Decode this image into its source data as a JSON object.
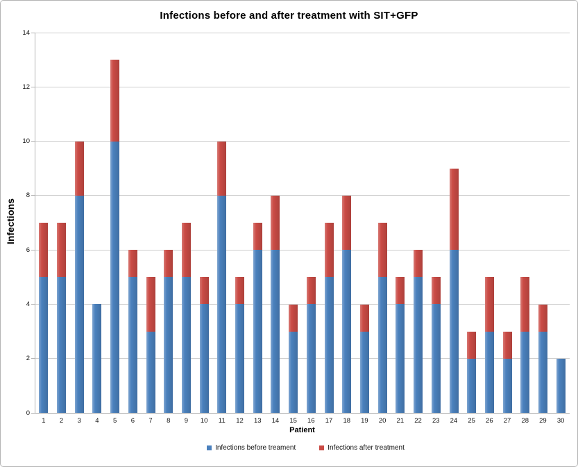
{
  "chart_data": {
    "type": "bar",
    "stacked": true,
    "title": "Infections before and after treatment with SIT+GFP",
    "xlabel": "Patient",
    "ylabel": "Infections",
    "categories": [
      "1",
      "2",
      "3",
      "4",
      "5",
      "6",
      "7",
      "8",
      "9",
      "10",
      "11",
      "12",
      "13",
      "14",
      "15",
      "16",
      "17",
      "18",
      "19",
      "20",
      "21",
      "22",
      "23",
      "24",
      "25",
      "26",
      "27",
      "28",
      "29",
      "30"
    ],
    "series": [
      {
        "name": "Infections before treament",
        "color": "#4a80bd",
        "values": [
          5,
          5,
          8,
          4,
          10,
          5,
          3,
          5,
          5,
          4,
          8,
          4,
          6,
          6,
          3,
          4,
          5,
          6,
          3,
          5,
          4,
          5,
          4,
          6,
          2,
          3,
          2,
          3,
          3,
          2
        ]
      },
      {
        "name": "Infections after treatment",
        "color": "#ca4b45",
        "values": [
          2,
          2,
          2,
          0,
          3,
          1,
          2,
          1,
          2,
          1,
          2,
          1,
          1,
          2,
          1,
          1,
          2,
          2,
          1,
          2,
          1,
          1,
          1,
          3,
          1,
          2,
          1,
          2,
          1,
          0
        ]
      }
    ],
    "ylim": [
      0,
      14
    ],
    "yticks": [
      0,
      2,
      4,
      6,
      8,
      10,
      12,
      14
    ],
    "grid": true,
    "legend_position": "bottom"
  },
  "colors": {
    "before_bar": "#4a80bd",
    "after_bar": "#ca4b45",
    "gridline": "#cdcdcd",
    "axis": "#b3b3b3",
    "background": "#ffffff",
    "border": "#b4b4b4"
  }
}
